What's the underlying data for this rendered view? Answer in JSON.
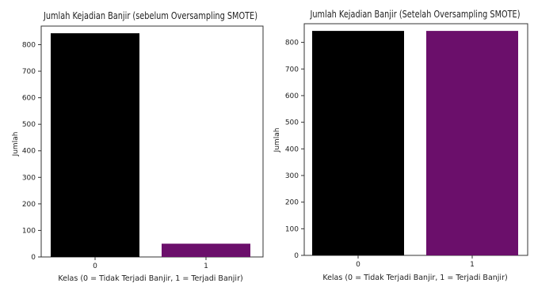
{
  "chart_data": [
    {
      "type": "bar",
      "title": "Jumlah Kejadian Banjir (sebelum Oversampling SMOTE)",
      "xlabel": "Kelas (0 = Tidak Terjadi Banjir, 1 = Terjadi Banjir)",
      "ylabel": "Jumlah",
      "categories": [
        "0",
        "1"
      ],
      "values": [
        843,
        50
      ],
      "colors": [
        "#000000",
        "#6b0f6b"
      ],
      "ylim": [
        0,
        870
      ],
      "yticks": [
        0,
        100,
        200,
        300,
        400,
        500,
        600,
        700,
        800
      ],
      "grid": false
    },
    {
      "type": "bar",
      "title": "Jumlah Kejadian Banjir (Setelah Oversampling SMOTE)",
      "xlabel": "Kelas (0 = Tidak Terjadi Banjir, 1 = Terjadi Banjir)",
      "ylabel": "Jumlah",
      "categories": [
        "0",
        "1"
      ],
      "values": [
        843,
        843
      ],
      "colors": [
        "#000000",
        "#6b0f6b"
      ],
      "ylim": [
        0,
        870
      ],
      "yticks": [
        0,
        100,
        200,
        300,
        400,
        500,
        600,
        700,
        800
      ],
      "grid": false
    }
  ]
}
